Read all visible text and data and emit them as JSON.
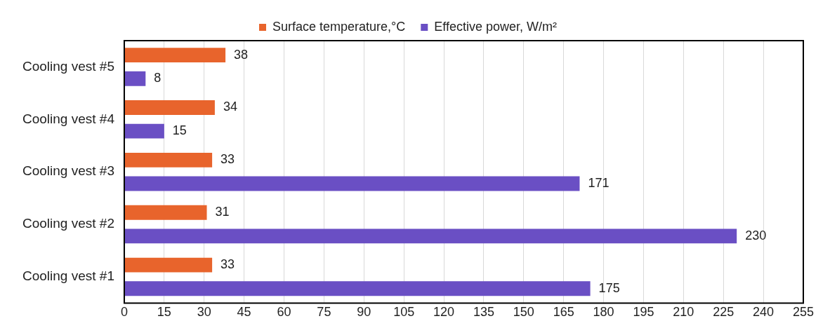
{
  "chart_data": {
    "type": "bar",
    "orientation": "horizontal",
    "categories": [
      "Cooling vest #5",
      "Cooling vest #4",
      "Cooling vest #3",
      "Cooling vest #2",
      "Cooling vest #1"
    ],
    "series": [
      {
        "name": "Surface temperature,°C",
        "color": "#e8642c",
        "values": [
          38,
          34,
          33,
          31,
          33
        ]
      },
      {
        "name": "Effective power, W/m²",
        "color": "#6a4fc4",
        "values": [
          8,
          15,
          171,
          230,
          175
        ]
      }
    ],
    "xlim": [
      0,
      255
    ],
    "xticks": [
      0,
      15,
      30,
      45,
      60,
      75,
      90,
      105,
      120,
      135,
      150,
      165,
      180,
      195,
      210,
      225,
      240,
      255
    ],
    "grid": "x",
    "legend": "top",
    "data_labels": true
  }
}
